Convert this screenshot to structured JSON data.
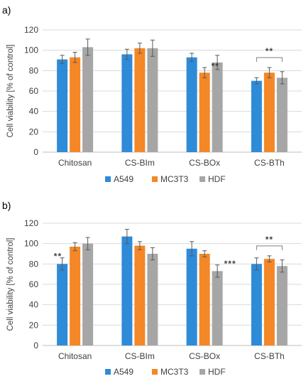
{
  "figure": {
    "panels": [
      "a)",
      "b)"
    ]
  },
  "chart_data": [
    {
      "type": "bar",
      "panel": "a)",
      "categories": [
        "Chitosan",
        "CS-BIm",
        "CS-BOx",
        "CS-BTh"
      ],
      "series": [
        {
          "name": "A549",
          "color": "#2e8bd8",
          "values": [
            91,
            96,
            93,
            70
          ],
          "errors": [
            4,
            5,
            4,
            3
          ]
        },
        {
          "name": "MC3T3",
          "color": "#f48726",
          "values": [
            93,
            102,
            78,
            78
          ],
          "errors": [
            5,
            5,
            5,
            5
          ]
        },
        {
          "name": "HDF",
          "color": "#a6a6a6",
          "values": [
            103,
            102,
            88,
            73
          ],
          "errors": [
            8,
            8,
            7,
            6
          ]
        }
      ],
      "ylabel": "Cell viability [% of control]",
      "ylim": [
        0,
        120
      ],
      "yticks": [
        0,
        20,
        40,
        60,
        80,
        100,
        120
      ],
      "grid": true,
      "legend": "bottom",
      "annotations": [
        {
          "text": "**",
          "category": "CS-BOx",
          "series": "MC3T3",
          "bracket": false
        },
        {
          "text": "**",
          "category": "CS-BTh",
          "bracket": true
        }
      ]
    },
    {
      "type": "bar",
      "panel": "b)",
      "categories": [
        "Chitosan",
        "CS-BIm",
        "CS-BOx",
        "CS-BTh"
      ],
      "series": [
        {
          "name": "A549",
          "color": "#2e8bd8",
          "values": [
            80,
            107,
            95,
            80
          ],
          "errors": [
            6,
            7,
            7,
            6
          ]
        },
        {
          "name": "MC3T3",
          "color": "#f48726",
          "values": [
            97,
            98,
            90,
            85
          ],
          "errors": [
            4,
            4,
            3,
            3
          ]
        },
        {
          "name": "HDF",
          "color": "#a6a6a6",
          "values": [
            100,
            90,
            73,
            78
          ],
          "errors": [
            6,
            6,
            6,
            6
          ]
        }
      ],
      "ylabel": "Cell viability [% of control]",
      "ylim": [
        0,
        120
      ],
      "yticks": [
        0,
        20,
        40,
        60,
        80,
        100,
        120
      ],
      "grid": true,
      "legend": "bottom",
      "annotations": [
        {
          "text": "**",
          "category": "Chitosan",
          "series": "A549",
          "bracket": false
        },
        {
          "text": "***",
          "category": "CS-BOx",
          "series": "HDF",
          "bracket": false
        },
        {
          "text": "**",
          "category": "CS-BTh",
          "bracket": true
        }
      ]
    }
  ]
}
